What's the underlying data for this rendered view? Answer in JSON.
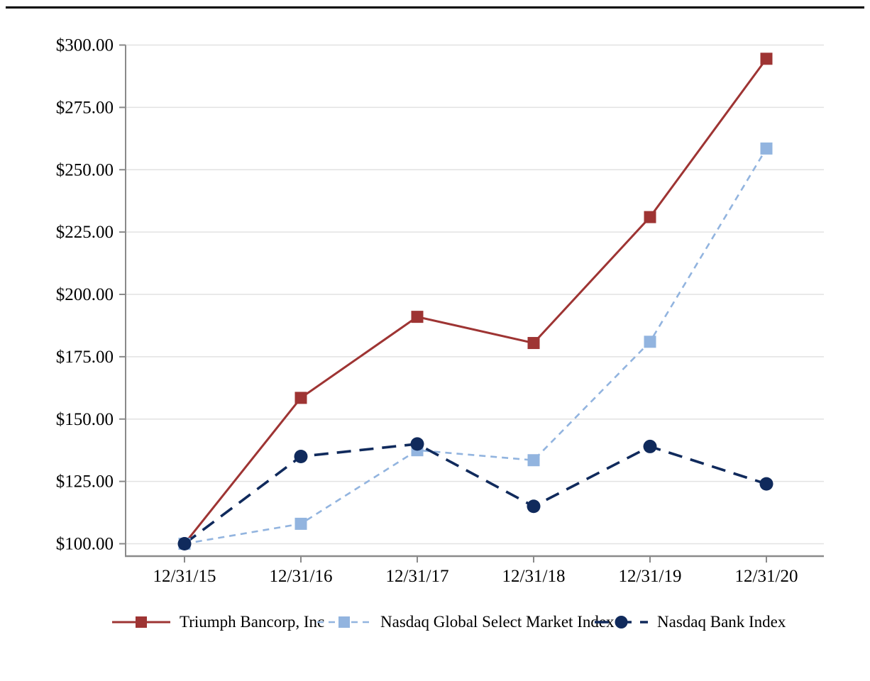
{
  "page": {
    "background": "#ffffff"
  },
  "top_rule": {
    "color": "#000000"
  },
  "colors": {
    "gridline": "#e2e2e2",
    "axis": "#8a8a8a",
    "text": "#000000"
  },
  "chart_data": {
    "type": "line",
    "title": "",
    "xlabel": "",
    "ylabel": "",
    "grid": true,
    "legend_position": "bottom",
    "categories": [
      "12/31/15",
      "12/31/16",
      "12/31/17",
      "12/31/18",
      "12/31/19",
      "12/31/20"
    ],
    "y_ticks": [
      "$300.00",
      "$275.00",
      "$250.00",
      "$225.00",
      "$200.00",
      "$175.00",
      "$150.00",
      "$125.00",
      "$100.00"
    ],
    "y_axis": {
      "min": 100,
      "max": 300,
      "step": 25,
      "tick_prefix": "$"
    },
    "series": [
      {
        "name": "Triumph Bancorp, Inc",
        "color": "#9e3433",
        "line_style": "solid",
        "marker": "square",
        "values": [
          100.0,
          158.5,
          191.0,
          180.5,
          231.0,
          294.5
        ]
      },
      {
        "name": "Nasdaq Global Select Market Index",
        "color": "#92b4df",
        "line_style": "dashed",
        "marker": "square",
        "values": [
          100.0,
          108.0,
          137.5,
          133.5,
          181.0,
          258.5
        ]
      },
      {
        "name": "Nasdaq Bank Index",
        "color": "#102a5c",
        "line_style": "long-dash",
        "marker": "circle",
        "values": [
          100.0,
          135.0,
          140.0,
          115.0,
          139.0,
          124.0
        ]
      }
    ]
  }
}
